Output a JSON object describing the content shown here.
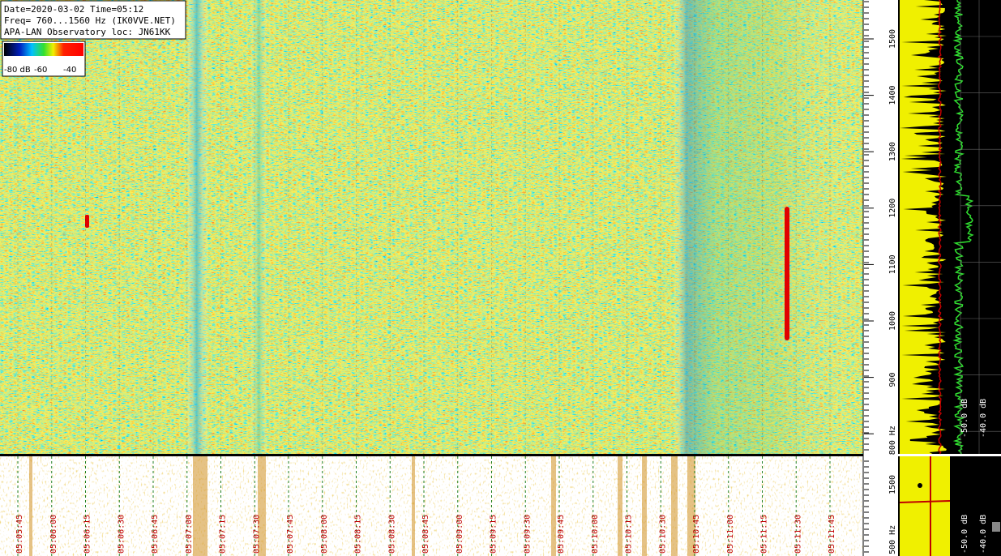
{
  "header": {
    "lines": [
      "Date=2020-03-02 Time=05:12",
      "Freq= 760...1560 Hz (IK0VVE.NET)",
      "APA-LAN Observatory loc: JN61KK"
    ]
  },
  "color_scale": {
    "labels": [
      "-80 dB",
      "-60",
      "-40"
    ]
  },
  "frequency_axis": {
    "labels": [
      "1500",
      "1400",
      "1300",
      "1200",
      "1100",
      "1000",
      "900",
      "800 Hz"
    ]
  },
  "time_axis": {
    "labels": [
      "05:05:45",
      "05:06:00",
      "05:06:15",
      "05:06:30",
      "05:06:45",
      "05:07:00",
      "05:07:15",
      "05:07:30",
      "05:07:45",
      "05:08:00",
      "05:08:15",
      "05:08:30",
      "05:08:45",
      "05:09:00",
      "05:09:15",
      "05:09:30",
      "05:09:45",
      "05:10:00",
      "05:10:15",
      "05:10:30",
      "05:10:45",
      "05:11:00",
      "05:11:15",
      "05:11:30",
      "05:11:45"
    ]
  },
  "spectrum_panel": {
    "labels": [
      "-50.0 dB",
      "-40.0 dB"
    ]
  },
  "mini_axis": {
    "labels": [
      "1500",
      "500 Hz"
    ]
  },
  "mini_spectrum": {
    "labels": [
      "-50.0 dB",
      "-40.0 dB"
    ]
  }
}
